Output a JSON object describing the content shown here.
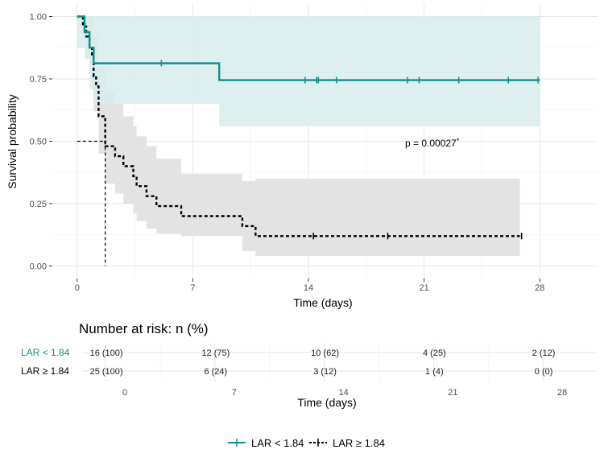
{
  "chart_data": {
    "type": "line",
    "subtype": "kaplan-meier",
    "xlabel": "Time (days)",
    "ylabel": "Survival probability",
    "xlim": [
      -1.5,
      31.5
    ],
    "ylim": [
      -0.05,
      1.05
    ],
    "x_ticks": [
      0,
      7,
      14,
      21,
      28
    ],
    "x_tick_labels": [
      "0",
      "7",
      "14",
      "21",
      "28"
    ],
    "y_ticks": [
      0,
      0.25,
      0.5,
      0.75,
      1.0
    ],
    "y_tick_labels": [
      "0.00",
      "0.25",
      "0.50",
      "0.75",
      "1.00"
    ],
    "grid": true,
    "pvalue_label": "p = 0.00027",
    "pvalue_marker": "*",
    "median_line": {
      "y": 0.5,
      "x": 1.7
    },
    "series": [
      {
        "name": "LAR < 1.84",
        "color": "#138f8f",
        "line_style": "solid",
        "steps": [
          [
            0,
            1.0
          ],
          [
            0.45,
            0.9375
          ],
          [
            0.75,
            0.875
          ],
          [
            1.0,
            0.8125
          ],
          [
            8.6,
            0.745
          ],
          [
            28,
            0.745
          ]
        ],
        "censor_times": [
          5.1,
          13.8,
          14.5,
          14.6,
          15.7,
          20.0,
          20.7,
          23.1,
          26.1,
          27.9
        ],
        "ci_steps": [
          [
            0,
            0.875,
            1.0
          ],
          [
            0.45,
            0.83,
            1.0
          ],
          [
            0.75,
            0.71,
            1.0
          ],
          [
            1.0,
            0.65,
            1.0
          ],
          [
            8.6,
            0.56,
            1.0
          ],
          [
            28,
            0.56,
            1.0
          ]
        ]
      },
      {
        "name": "LAR ≥ 1.84",
        "color": "#000000",
        "line_style": "dashed",
        "steps": [
          [
            0,
            1.0
          ],
          [
            0.35,
            0.96
          ],
          [
            0.55,
            0.92
          ],
          [
            0.75,
            0.88
          ],
          [
            0.9,
            0.84
          ],
          [
            1.0,
            0.76
          ],
          [
            1.15,
            0.72
          ],
          [
            1.3,
            0.6
          ],
          [
            1.7,
            0.48
          ],
          [
            2.3,
            0.44
          ],
          [
            2.8,
            0.4
          ],
          [
            3.4,
            0.36
          ],
          [
            3.6,
            0.32
          ],
          [
            4.2,
            0.28
          ],
          [
            4.8,
            0.24
          ],
          [
            6.3,
            0.2
          ],
          [
            10.0,
            0.16
          ],
          [
            10.8,
            0.12
          ],
          [
            26.8,
            0.12
          ]
        ],
        "censor_times": [
          14.3,
          18.8,
          26.9
        ],
        "ci_steps": [
          [
            0,
            0.99,
            1.0
          ],
          [
            0.35,
            0.92,
            1.0
          ],
          [
            0.55,
            0.84,
            1.0
          ],
          [
            0.75,
            0.77,
            1.0
          ],
          [
            0.9,
            0.71,
            1.0
          ],
          [
            1.0,
            0.62,
            0.92
          ],
          [
            1.3,
            0.45,
            0.8
          ],
          [
            1.7,
            0.33,
            0.7
          ],
          [
            2.3,
            0.29,
            0.65
          ],
          [
            2.8,
            0.25,
            0.6
          ],
          [
            3.4,
            0.21,
            0.56
          ],
          [
            3.6,
            0.18,
            0.52
          ],
          [
            4.2,
            0.15,
            0.48
          ],
          [
            4.8,
            0.13,
            0.43
          ],
          [
            6.3,
            0.12,
            0.37
          ],
          [
            10.0,
            0.06,
            0.34
          ],
          [
            10.8,
            0.04,
            0.35
          ],
          [
            26.8,
            0.04,
            0.35
          ]
        ]
      }
    ],
    "risk_table": {
      "title": "Number at risk: n (%)",
      "xlabel": "Time (days)",
      "times": [
        0,
        7,
        14,
        21,
        28
      ],
      "time_labels": [
        "0",
        "7",
        "14",
        "21",
        "28"
      ],
      "rows": [
        {
          "label": "LAR < 1.84",
          "color": "#138f8f",
          "values": [
            "16 (100)",
            "12 (75)",
            "10 (62)",
            "4 (25)",
            "2 (12)"
          ]
        },
        {
          "label": "LAR ≥ 1.84",
          "color": "#000000",
          "values": [
            "25 (100)",
            "6 (24)",
            "3 (12)",
            "1 (4)",
            "0 (0)"
          ]
        }
      ]
    },
    "legend": {
      "position": "bottom",
      "entries": [
        {
          "label": "LAR < 1.84",
          "color": "#138f8f"
        },
        {
          "label": "LAR ≥ 1.84",
          "color": "#000000"
        }
      ]
    }
  },
  "colors": {
    "band_teal": "#d7ecec",
    "band_grey": "#e3e3e3",
    "grid_major": "#e6e6e6",
    "grid_minor": "#f3f3f3",
    "text": "#000000",
    "tick_text": "#4d4d4d"
  }
}
